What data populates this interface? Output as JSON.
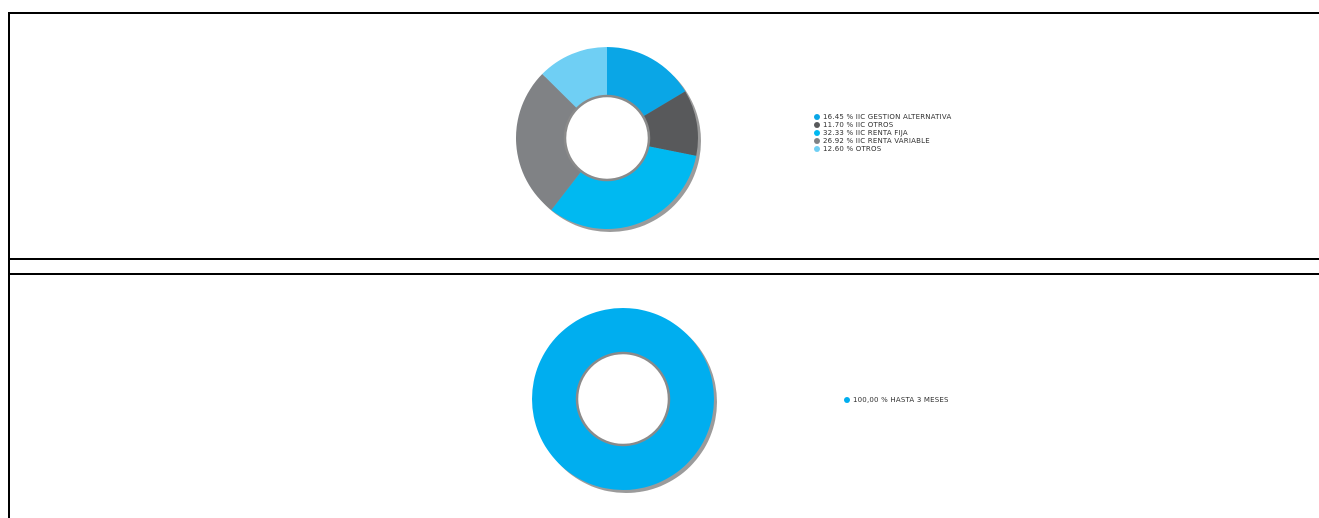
{
  "chart_data": [
    {
      "type": "pie",
      "variant": "donut",
      "slices": [
        {
          "label": "IIC GESTION ALTERNATIVA",
          "percent": 16.45,
          "display": "16.45",
          "color": "#0aa6e6"
        },
        {
          "label": "IIC OTROS",
          "percent": 11.7,
          "display": "11.70",
          "color": "#58595b"
        },
        {
          "label": "IIC RENTA FIJA",
          "percent": 32.33,
          "display": "32.33",
          "color": "#00b9f1"
        },
        {
          "label": "IIC RENTA VARIABLE",
          "percent": 26.92,
          "display": "26.92",
          "color": "#808285"
        },
        {
          "label": "OTROS",
          "percent": 12.6,
          "display": "12.60",
          "color": "#6fcff4"
        }
      ],
      "legend_position": "right"
    },
    {
      "type": "pie",
      "variant": "donut",
      "slices": [
        {
          "label": "HASTA 3 MESES",
          "percent": 100.0,
          "display": "100,00",
          "color": "#00aeef"
        }
      ],
      "legend_position": "right"
    }
  ]
}
